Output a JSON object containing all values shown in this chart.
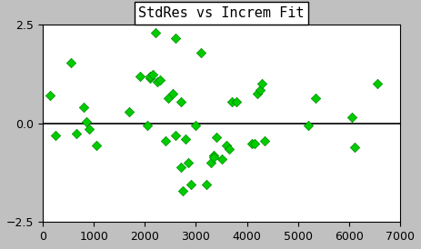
{
  "title": "StdRes vs Increm Fit",
  "xlim": [
    0,
    7000
  ],
  "ylim": [
    -2.5,
    2.5
  ],
  "xticks": [
    0,
    1000,
    2000,
    3000,
    4000,
    5000,
    6000,
    7000
  ],
  "yticks": [
    -2.5,
    0,
    2.5
  ],
  "hline_y": 0,
  "bg_color": "#c0c0c0",
  "plot_bg": "#ffffff",
  "marker_color": "#00cc00",
  "marker_edge": "#008800",
  "scatter_x": [
    150,
    250,
    550,
    650,
    800,
    850,
    900,
    1050,
    1700,
    1900,
    2050,
    2100,
    2100,
    2150,
    2200,
    2250,
    2300,
    2400,
    2450,
    2550,
    2600,
    2600,
    2700,
    2700,
    2750,
    2800,
    2850,
    2900,
    3000,
    3100,
    3200,
    3300,
    3350,
    3350,
    3400,
    3500,
    3600,
    3650,
    3700,
    3800,
    4100,
    4150,
    4200,
    4250,
    4300,
    4350,
    5200,
    5350,
    6050,
    6100,
    6550
  ],
  "scatter_y": [
    0.7,
    -0.3,
    1.55,
    -0.25,
    0.4,
    0.05,
    -0.15,
    -0.55,
    0.3,
    1.2,
    -0.05,
    1.15,
    1.2,
    1.25,
    2.3,
    1.05,
    1.1,
    -0.45,
    0.65,
    0.75,
    -0.3,
    2.15,
    0.55,
    -1.1,
    -1.7,
    -0.4,
    -1.0,
    -1.55,
    -0.05,
    1.8,
    -1.55,
    -1.0,
    -0.8,
    -0.85,
    -0.35,
    -0.9,
    -0.55,
    -0.65,
    0.55,
    0.55,
    -0.5,
    -0.5,
    0.75,
    0.85,
    1.0,
    -0.45,
    -0.05,
    0.65,
    0.15,
    -0.6,
    1.0
  ],
  "title_fontsize": 11,
  "tick_fontsize": 9
}
